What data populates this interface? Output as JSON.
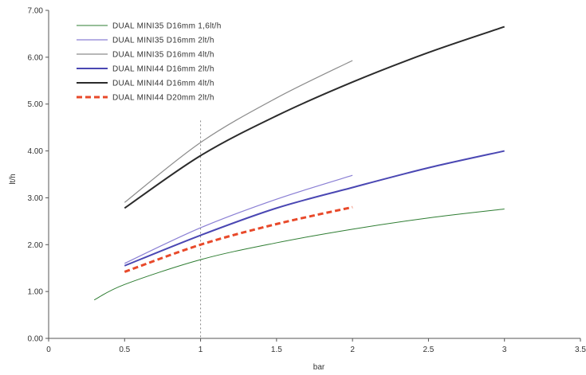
{
  "chart_data": {
    "type": "line",
    "title": "",
    "xlabel": "bar",
    "ylabel": "lt/h",
    "xlim": [
      0,
      3.5
    ],
    "ylim": [
      0,
      7
    ],
    "xticks": [
      "0",
      "0.5",
      "1",
      "1.5",
      "2",
      "2.5",
      "3",
      "3.5"
    ],
    "yticks": [
      "0.00",
      "1.00",
      "2.00",
      "3.00",
      "4.00",
      "5.00",
      "6.00",
      "7.00"
    ],
    "grid": false,
    "legend_position": "top-left",
    "reference_line": {
      "x": 1,
      "style": "dotted"
    },
    "series": [
      {
        "name": "DUAL MINI35 D16mm 1,6lt/h",
        "color": "#2e7d32",
        "dash": false,
        "width": 1,
        "x": [
          0.3,
          0.5,
          1,
          1.5,
          2,
          2.5,
          3
        ],
        "y": [
          0.82,
          1.15,
          1.68,
          2.04,
          2.33,
          2.57,
          2.76
        ]
      },
      {
        "name": "DUAL MINI35 D16mm 2lt/h",
        "color": "#8a7fd4",
        "dash": false,
        "width": 1.2,
        "x": [
          0.5,
          1,
          1.5,
          2
        ],
        "y": [
          1.6,
          2.36,
          2.97,
          3.48
        ]
      },
      {
        "name": "DUAL MINI35 D16mm 4lt/h",
        "color": "#8c8c8c",
        "dash": false,
        "width": 1.2,
        "x": [
          0.5,
          1,
          1.5,
          2
        ],
        "y": [
          2.9,
          4.18,
          5.13,
          5.93
        ]
      },
      {
        "name": "DUAL MINI44 D16mm 2lt/h",
        "color": "#4a47b3",
        "dash": false,
        "width": 2,
        "x": [
          0.5,
          1,
          1.5,
          2,
          2.5,
          3
        ],
        "y": [
          1.55,
          2.2,
          2.78,
          3.22,
          3.64,
          4.0
        ]
      },
      {
        "name": "DUAL MINI44 D16mm 4lt/h",
        "color": "#2b2b2b",
        "dash": false,
        "width": 2,
        "x": [
          0.5,
          1,
          1.5,
          2,
          2.5,
          3
        ],
        "y": [
          2.78,
          3.9,
          4.75,
          5.47,
          6.1,
          6.65
        ]
      },
      {
        "name": "DUAL MINI44 D20mm 2lt/h",
        "color": "#e8492a",
        "dash": true,
        "width": 3,
        "x": [
          0.5,
          1,
          1.5,
          2
        ],
        "y": [
          1.42,
          2.0,
          2.44,
          2.8
        ]
      }
    ]
  }
}
